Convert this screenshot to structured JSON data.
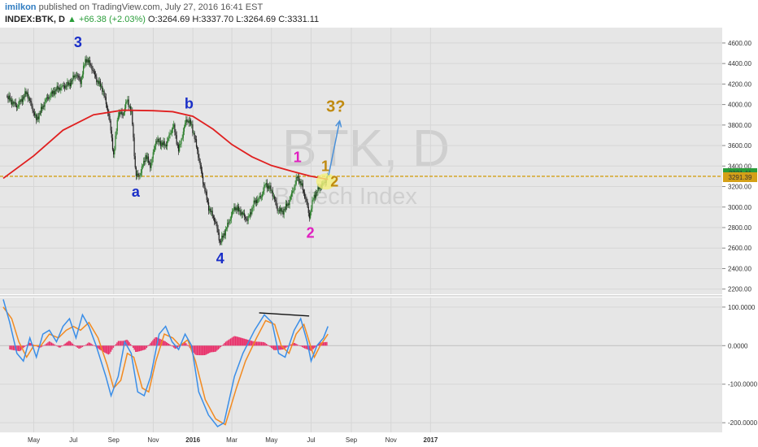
{
  "header": {
    "author": "imilkon",
    "published": "published on TradingView.com, July 27, 2016 16:41 EST",
    "symbol": "INDEX:BTK, D",
    "change": "▲ +66.38 (+2.03%)",
    "ohlc": "O:3264.69  H:3337.70  L:3264.69  C:3331.11"
  },
  "watermark": {
    "symbol": "BTK, D",
    "name": "Biotech Index"
  },
  "colors": {
    "up": "#2a7d2a",
    "down": "#222222",
    "ma": "#e02020",
    "level": "#d4a017",
    "wave_blue": "#1a2fc8",
    "wave_magenta": "#e020c0",
    "wave_gold": "#c08a10",
    "macd": "#3a8ee8",
    "signal": "#f28a20",
    "hist": "#e8306a",
    "projection": "#4a90d9"
  },
  "chart_data": [
    {
      "type": "candlestick",
      "title": "INDEX:BTK, D",
      "x_ticks": [
        "May",
        "Jul",
        "Sep",
        "Nov",
        "2016",
        "Mar",
        "May",
        "Jul",
        "Sep",
        "Nov",
        "2017"
      ],
      "y_ticks": [
        "4600.00",
        "4400.00",
        "4200.00",
        "4000.00",
        "3800.00",
        "3600.00",
        "3400.00",
        "3200.00",
        "3000.00",
        "2800.00",
        "2600.00",
        "2400.00",
        "2200.00"
      ],
      "ylim": [
        2150,
        4750
      ],
      "price_path": [
        [
          "2015-03-20",
          4080
        ],
        [
          "2015-04-05",
          3980
        ],
        [
          "2015-04-20",
          4120
        ],
        [
          "2015-05-05",
          3850
        ],
        [
          "2015-05-20",
          4050
        ],
        [
          "2015-06-05",
          4150
        ],
        [
          "2015-06-25",
          4200
        ],
        [
          "2015-07-05",
          4300
        ],
        [
          "2015-07-12",
          4220
        ],
        [
          "2015-07-20",
          4450
        ],
        [
          "2015-07-28",
          4380
        ],
        [
          "2015-08-05",
          4250
        ],
        [
          "2015-08-15",
          4150
        ],
        [
          "2015-08-25",
          3880
        ],
        [
          "2015-09-01",
          3500
        ],
        [
          "2015-09-08",
          3920
        ],
        [
          "2015-09-15",
          3900
        ],
        [
          "2015-09-22",
          4050
        ],
        [
          "2015-09-29",
          3900
        ],
        [
          "2015-10-05",
          3300
        ],
        [
          "2015-10-12",
          3320
        ],
        [
          "2015-10-20",
          3500
        ],
        [
          "2015-10-28",
          3400
        ],
        [
          "2015-11-05",
          3650
        ],
        [
          "2015-11-20",
          3600
        ],
        [
          "2015-12-02",
          3800
        ],
        [
          "2015-12-10",
          3550
        ],
        [
          "2015-12-22",
          3860
        ],
        [
          "2015-12-30",
          3800
        ],
        [
          "2016-01-08",
          3550
        ],
        [
          "2016-01-15",
          3300
        ],
        [
          "2016-01-25",
          3000
        ],
        [
          "2016-02-05",
          2850
        ],
        [
          "2016-02-12",
          2650
        ],
        [
          "2016-02-22",
          2800
        ],
        [
          "2016-03-05",
          3000
        ],
        [
          "2016-03-15",
          2950
        ],
        [
          "2016-03-25",
          2870
        ],
        [
          "2016-04-05",
          3050
        ],
        [
          "2016-04-15",
          3100
        ],
        [
          "2016-04-22",
          3230
        ],
        [
          "2016-05-02",
          3150
        ],
        [
          "2016-05-10",
          2980
        ],
        [
          "2016-05-18",
          2950
        ],
        [
          "2016-05-28",
          3050
        ],
        [
          "2016-06-05",
          3200
        ],
        [
          "2016-06-10",
          3300
        ],
        [
          "2016-06-17",
          3200
        ],
        [
          "2016-06-24",
          3050
        ],
        [
          "2016-06-28",
          2900
        ],
        [
          "2016-07-05",
          3100
        ],
        [
          "2016-07-15",
          3200
        ],
        [
          "2016-07-22",
          3240
        ],
        [
          "2016-07-27",
          3331
        ]
      ],
      "moving_average": [
        [
          "2015-03-15",
          3280
        ],
        [
          "2015-05-01",
          3500
        ],
        [
          "2015-06-15",
          3750
        ],
        [
          "2015-08-01",
          3900
        ],
        [
          "2015-09-15",
          3945
        ],
        [
          "2015-11-01",
          3940
        ],
        [
          "2015-12-01",
          3930
        ],
        [
          "2016-01-01",
          3885
        ],
        [
          "2016-02-01",
          3760
        ],
        [
          "2016-03-01",
          3610
        ],
        [
          "2016-04-01",
          3490
        ],
        [
          "2016-05-01",
          3405
        ],
        [
          "2016-06-01",
          3350
        ],
        [
          "2016-07-01",
          3300
        ],
        [
          "2016-07-27",
          3270
        ]
      ],
      "horizontal_level": 3300,
      "price_labels": [
        {
          "label": "3331.11",
          "value": 3331.11,
          "color": "#2a9d3a"
        },
        {
          "label": "3291.39",
          "value": 3291.39,
          "color": "#d4a017"
        }
      ],
      "wave_labels": [
        {
          "label": "3",
          "date": "2015-07-08",
          "value": 4560,
          "color": "wave_blue"
        },
        {
          "label": "a",
          "date": "2015-10-05",
          "value": 3100,
          "color": "wave_blue"
        },
        {
          "label": "b",
          "date": "2015-12-26",
          "value": 3960,
          "color": "wave_blue"
        },
        {
          "label": "4",
          "date": "2016-02-12",
          "value": 2450,
          "color": "wave_blue"
        },
        {
          "label": "1",
          "date": "2016-06-10",
          "value": 3440,
          "color": "wave_magenta"
        },
        {
          "label": "2",
          "date": "2016-06-30",
          "value": 2700,
          "color": "wave_magenta"
        },
        {
          "label": "1",
          "date": "2016-07-23",
          "value": 3350,
          "color": "wave_gold"
        },
        {
          "label": "2",
          "date": "2016-08-06",
          "value": 3200,
          "color": "wave_gold"
        },
        {
          "label": "3?",
          "date": "2016-08-08",
          "value": 3930,
          "color": "wave_gold"
        }
      ],
      "projection": {
        "from": [
          "2016-07-28",
          3310
        ],
        "to": [
          "2016-08-14",
          3840
        ]
      }
    },
    {
      "type": "line",
      "title": "MACD",
      "y_ticks": [
        "100.0000",
        "0.0000",
        "-100.0000",
        "-200.0000"
      ],
      "ylim": [
        -225,
        125
      ],
      "macd": [
        [
          "2015-03-15",
          120
        ],
        [
          "2015-03-25",
          60
        ],
        [
          "2015-04-05",
          -20
        ],
        [
          "2015-04-15",
          -40
        ],
        [
          "2015-04-25",
          20
        ],
        [
          "2015-05-05",
          -30
        ],
        [
          "2015-05-15",
          30
        ],
        [
          "2015-05-25",
          40
        ],
        [
          "2015-06-05",
          10
        ],
        [
          "2015-06-15",
          50
        ],
        [
          "2015-06-25",
          70
        ],
        [
          "2015-07-05",
          20
        ],
        [
          "2015-07-15",
          80
        ],
        [
          "2015-07-25",
          50
        ],
        [
          "2015-08-05",
          0
        ],
        [
          "2015-08-20",
          -80
        ],
        [
          "2015-08-28",
          -130
        ],
        [
          "2015-09-08",
          -80
        ],
        [
          "2015-09-18",
          10
        ],
        [
          "2015-09-28",
          -20
        ],
        [
          "2015-10-08",
          -120
        ],
        [
          "2015-10-18",
          -130
        ],
        [
          "2015-10-28",
          -80
        ],
        [
          "2015-11-10",
          30
        ],
        [
          "2015-11-20",
          50
        ],
        [
          "2015-11-30",
          10
        ],
        [
          "2015-12-10",
          -10
        ],
        [
          "2015-12-20",
          30
        ],
        [
          "2015-12-30",
          0
        ],
        [
          "2016-01-10",
          -120
        ],
        [
          "2016-01-25",
          -180
        ],
        [
          "2016-02-08",
          -210
        ],
        [
          "2016-02-18",
          -200
        ],
        [
          "2016-03-05",
          -80
        ],
        [
          "2016-03-18",
          -20
        ],
        [
          "2016-04-05",
          40
        ],
        [
          "2016-04-20",
          80
        ],
        [
          "2016-05-02",
          60
        ],
        [
          "2016-05-12",
          -20
        ],
        [
          "2016-05-22",
          -30
        ],
        [
          "2016-06-05",
          40
        ],
        [
          "2016-06-15",
          70
        ],
        [
          "2016-06-25",
          10
        ],
        [
          "2016-07-01",
          -40
        ],
        [
          "2016-07-10",
          0
        ],
        [
          "2016-07-20",
          20
        ],
        [
          "2016-07-27",
          50
        ]
      ],
      "signal": [
        [
          "2015-03-15",
          100
        ],
        [
          "2015-03-28",
          70
        ],
        [
          "2015-04-08",
          10
        ],
        [
          "2015-04-20",
          -30
        ],
        [
          "2015-05-01",
          0
        ],
        [
          "2015-05-12",
          0
        ],
        [
          "2015-05-25",
          30
        ],
        [
          "2015-06-08",
          20
        ],
        [
          "2015-06-20",
          40
        ],
        [
          "2015-07-01",
          50
        ],
        [
          "2015-07-12",
          40
        ],
        [
          "2015-07-25",
          60
        ],
        [
          "2015-08-08",
          20
        ],
        [
          "2015-08-22",
          -50
        ],
        [
          "2015-09-01",
          -110
        ],
        [
          "2015-09-12",
          -90
        ],
        [
          "2015-09-22",
          -20
        ],
        [
          "2015-10-02",
          -30
        ],
        [
          "2015-10-15",
          -110
        ],
        [
          "2015-10-25",
          -120
        ],
        [
          "2015-11-05",
          -40
        ],
        [
          "2015-11-18",
          30
        ],
        [
          "2015-12-01",
          20
        ],
        [
          "2015-12-12",
          0
        ],
        [
          "2015-12-24",
          15
        ],
        [
          "2016-01-05",
          -40
        ],
        [
          "2016-01-20",
          -140
        ],
        [
          "2016-02-05",
          -190
        ],
        [
          "2016-02-20",
          -205
        ],
        [
          "2016-03-08",
          -110
        ],
        [
          "2016-03-22",
          -40
        ],
        [
          "2016-04-08",
          20
        ],
        [
          "2016-04-22",
          65
        ],
        [
          "2016-05-06",
          55
        ],
        [
          "2016-05-16",
          0
        ],
        [
          "2016-05-28",
          -20
        ],
        [
          "2016-06-08",
          30
        ],
        [
          "2016-06-20",
          55
        ],
        [
          "2016-06-30",
          0
        ],
        [
          "2016-07-06",
          -30
        ],
        [
          "2016-07-15",
          0
        ],
        [
          "2016-07-27",
          30
        ]
      ],
      "histogram": [
        [
          "2015-03-25",
          -10
        ],
        [
          "2015-04-10",
          -15
        ],
        [
          "2015-04-25",
          10
        ],
        [
          "2015-05-10",
          -8
        ],
        [
          "2015-05-25",
          12
        ],
        [
          "2015-06-10",
          -6
        ],
        [
          "2015-06-25",
          15
        ],
        [
          "2015-07-10",
          -12
        ],
        [
          "2015-07-25",
          10
        ],
        [
          "2015-08-10",
          -10
        ],
        [
          "2015-08-25",
          -25
        ],
        [
          "2015-09-08",
          15
        ],
        [
          "2015-09-22",
          20
        ],
        [
          "2015-10-05",
          -18
        ],
        [
          "2015-10-20",
          -10
        ],
        [
          "2015-11-05",
          25
        ],
        [
          "2015-11-20",
          15
        ],
        [
          "2015-12-05",
          -10
        ],
        [
          "2015-12-20",
          10
        ],
        [
          "2016-01-05",
          -25
        ],
        [
          "2016-01-20",
          -30
        ],
        [
          "2016-02-05",
          -20
        ],
        [
          "2016-02-20",
          10
        ],
        [
          "2016-03-05",
          25
        ],
        [
          "2016-03-20",
          20
        ],
        [
          "2016-04-05",
          15
        ],
        [
          "2016-04-20",
          10
        ],
        [
          "2016-05-05",
          -12
        ],
        [
          "2016-05-20",
          -10
        ],
        [
          "2016-06-05",
          10
        ],
        [
          "2016-06-20",
          -8
        ],
        [
          "2016-07-01",
          -15
        ],
        [
          "2016-07-15",
          8
        ],
        [
          "2016-07-27",
          10
        ]
      ],
      "divergence_line": {
        "from": [
          "2016-04-12",
          85
        ],
        "to": [
          "2016-06-28",
          77
        ]
      }
    }
  ]
}
